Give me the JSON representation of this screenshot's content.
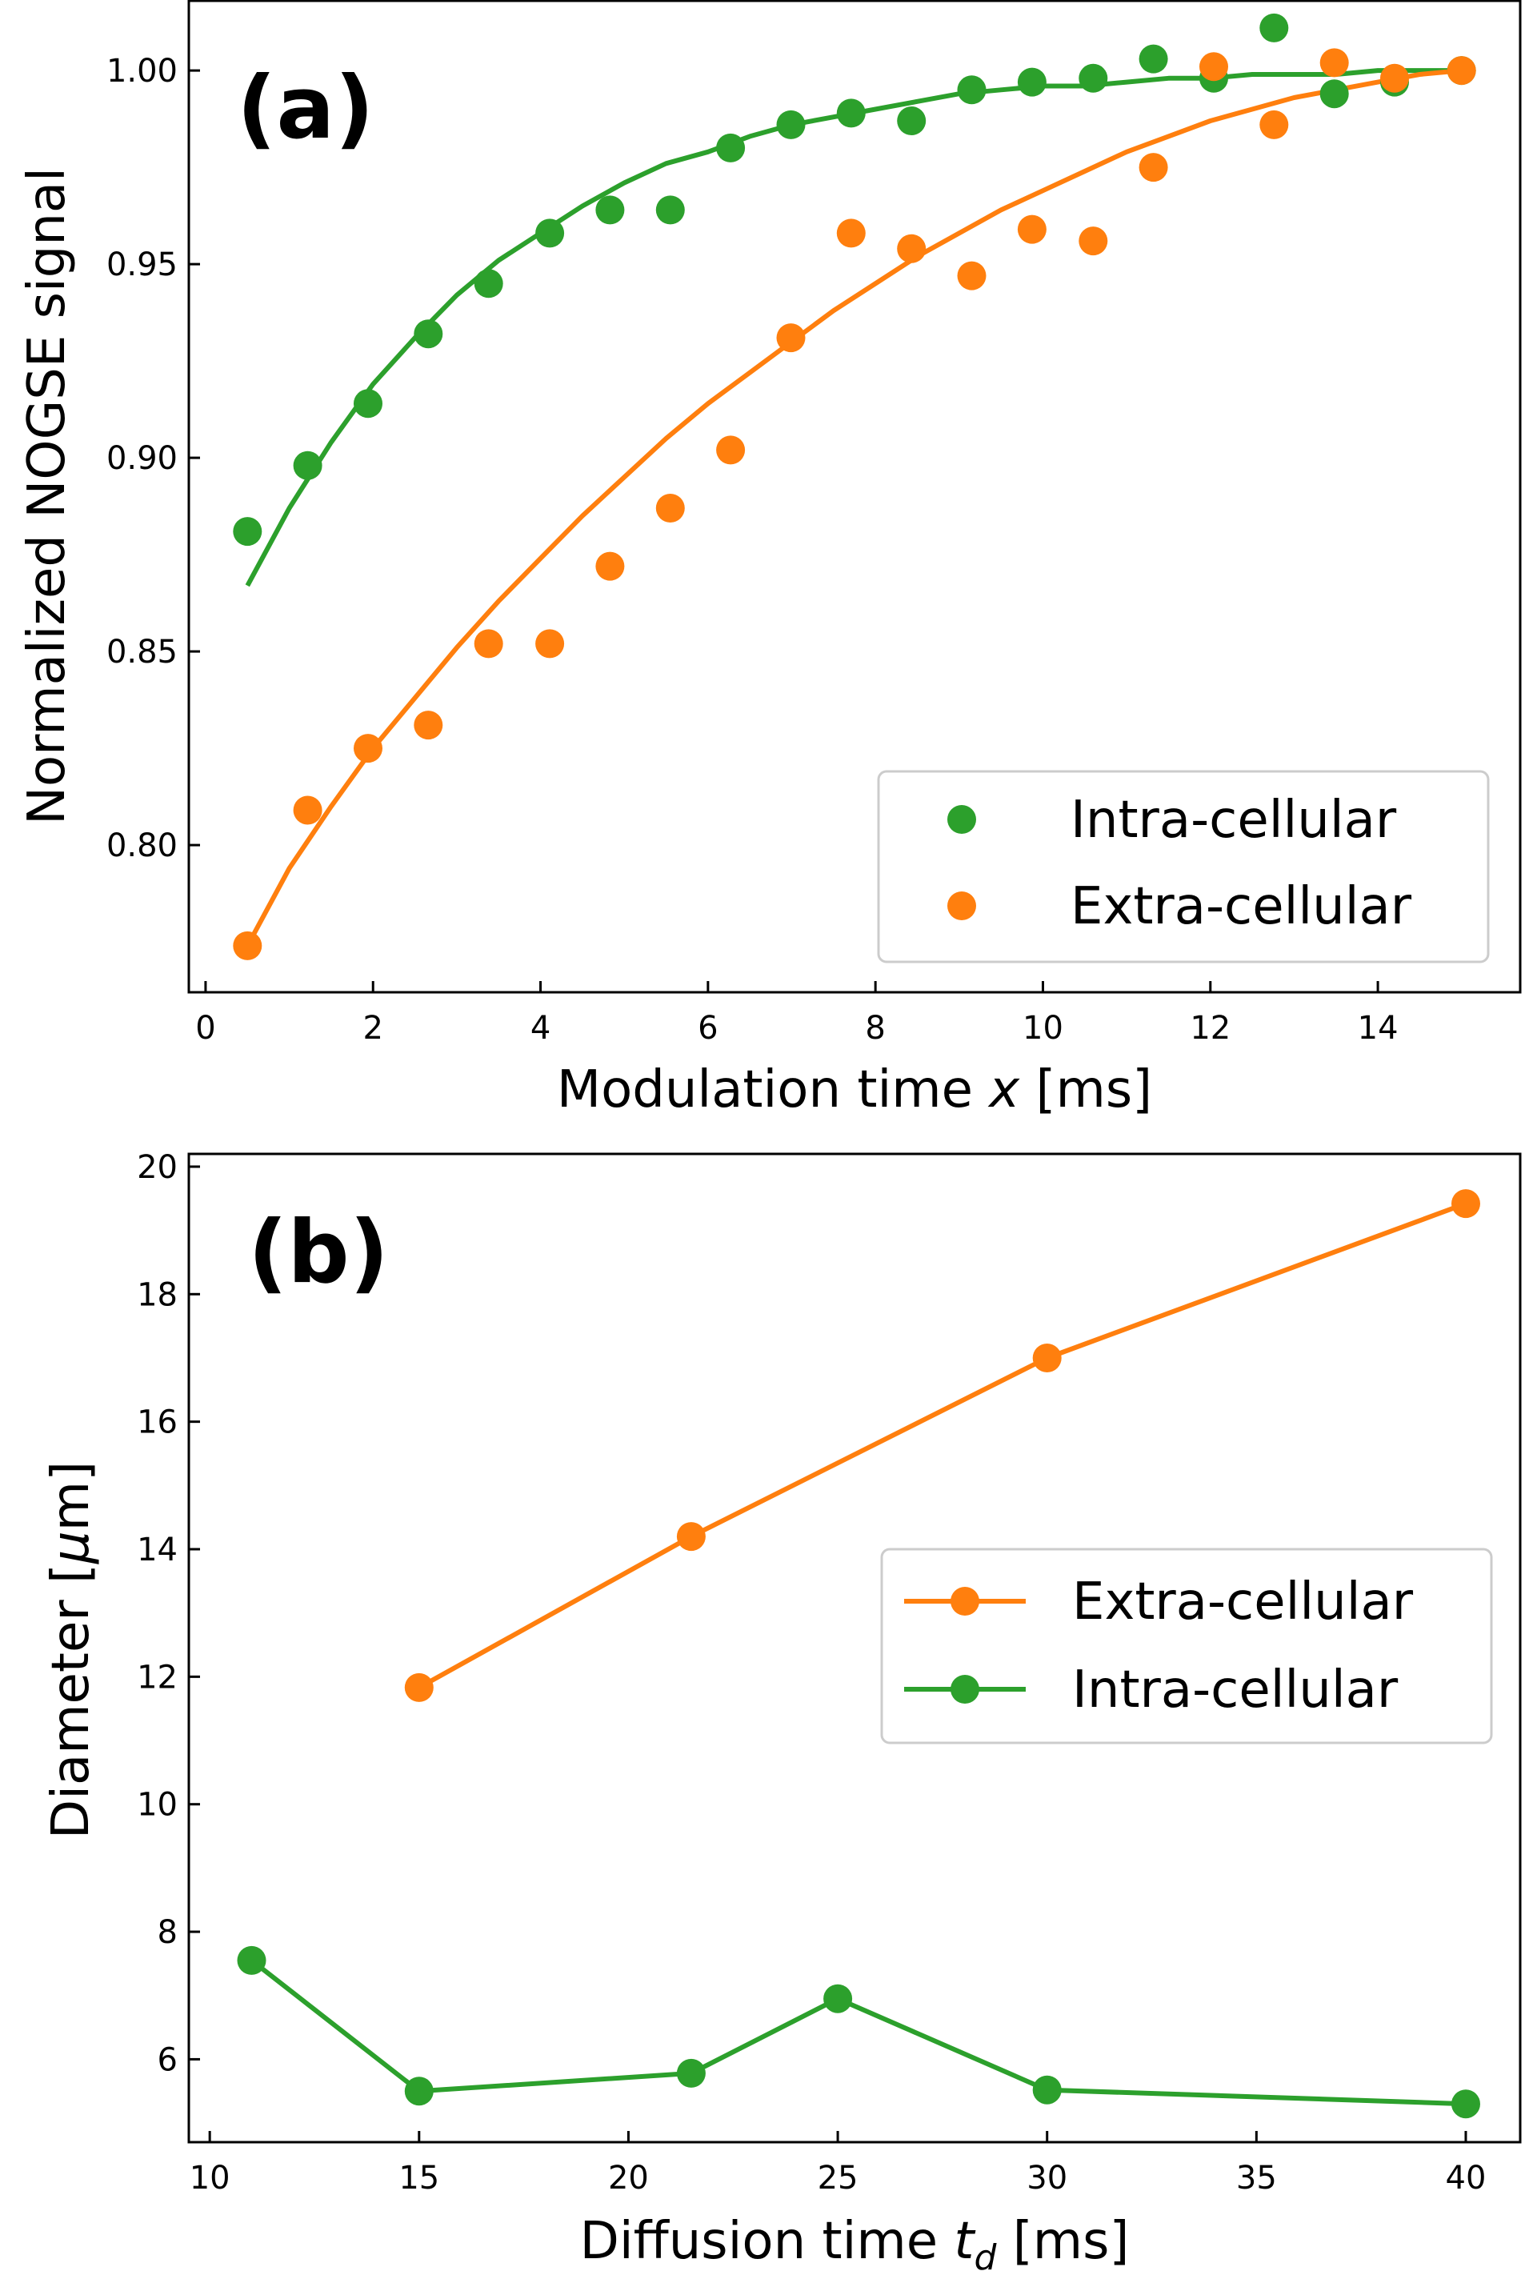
{
  "chart_data": [
    {
      "type": "scatter",
      "panel_label": "(a)",
      "xlabel": "Modulation time x [ms]",
      "xlabel_parts": {
        "prefix": "Modulation time ",
        "var": "x",
        "suffix": " [ms]"
      },
      "ylabel": "Normalized NOGSE signal",
      "xlim": [
        -0.2,
        15.7
      ],
      "ylim": [
        0.762,
        1.018
      ],
      "xticks": [
        0,
        2,
        4,
        6,
        8,
        10,
        12,
        14
      ],
      "yticks": [
        0.8,
        0.85,
        0.9,
        0.95,
        1.0
      ],
      "ytick_labels": [
        "0.80",
        "0.85",
        "0.90",
        "0.95",
        "1.00"
      ],
      "legend": {
        "position": "lower-right",
        "entries": [
          "Intra-cellular",
          "Extra-cellular"
        ]
      },
      "series": [
        {
          "name": "Intra-cellular",
          "color": "#2ca02c",
          "marker": "circle",
          "x": [
            0.5,
            1.22,
            1.94,
            2.66,
            3.38,
            4.11,
            4.83,
            5.55,
            6.27,
            6.99,
            7.71,
            8.43,
            9.15,
            9.87,
            10.6,
            11.32,
            12.04,
            12.76,
            13.48,
            14.2,
            15.0
          ],
          "y": [
            0.881,
            0.898,
            0.914,
            0.932,
            0.945,
            0.958,
            0.964,
            0.964,
            0.98,
            0.986,
            0.989,
            0.987,
            0.995,
            0.997,
            0.998,
            1.003,
            0.998,
            1.011,
            0.994,
            0.997,
            1.0
          ]
        },
        {
          "name": "Extra-cellular",
          "color": "#ff7f0e",
          "marker": "circle",
          "x": [
            0.5,
            1.22,
            1.94,
            2.66,
            3.38,
            4.11,
            4.83,
            5.55,
            6.27,
            6.99,
            7.71,
            8.43,
            9.15,
            9.87,
            10.6,
            11.32,
            12.04,
            12.76,
            13.48,
            14.2,
            15.0
          ],
          "y": [
            0.774,
            0.809,
            0.825,
            0.831,
            0.852,
            0.852,
            0.872,
            0.887,
            0.902,
            0.931,
            0.958,
            0.954,
            0.947,
            0.959,
            0.956,
            0.975,
            1.001,
            0.986,
            1.002,
            0.998,
            1.0
          ]
        }
      ],
      "fits": [
        {
          "color": "#2ca02c",
          "x": [
            0.5,
            1.0,
            1.5,
            2.0,
            2.5,
            3.0,
            3.5,
            4.0,
            4.5,
            5.0,
            5.5,
            6.0,
            6.5,
            7.0,
            7.5,
            8.0,
            8.5,
            9.0,
            9.5,
            10.0,
            10.5,
            11.0,
            11.5,
            12.0,
            12.5,
            13.0,
            13.5,
            14.0,
            14.5,
            15.0
          ],
          "y": [
            0.867,
            0.887,
            0.904,
            0.919,
            0.931,
            0.942,
            0.951,
            0.958,
            0.965,
            0.971,
            0.976,
            0.979,
            0.983,
            0.986,
            0.988,
            0.99,
            0.992,
            0.994,
            0.995,
            0.996,
            0.996,
            0.997,
            0.998,
            0.998,
            0.999,
            0.999,
            0.999,
            1.0,
            1.0,
            1.0
          ]
        },
        {
          "color": "#ff7f0e",
          "x": [
            0.5,
            1.0,
            1.5,
            2.0,
            2.5,
            3.0,
            3.5,
            4.0,
            4.5,
            5.0,
            5.5,
            6.0,
            6.5,
            7.0,
            7.5,
            8.0,
            8.5,
            9.0,
            9.5,
            10.0,
            10.5,
            11.0,
            11.5,
            12.0,
            12.5,
            13.0,
            13.5,
            14.0,
            14.5,
            15.0
          ],
          "y": [
            0.774,
            0.794,
            0.81,
            0.825,
            0.838,
            0.851,
            0.863,
            0.874,
            0.885,
            0.895,
            0.905,
            0.914,
            0.922,
            0.93,
            0.938,
            0.945,
            0.952,
            0.958,
            0.964,
            0.969,
            0.974,
            0.979,
            0.983,
            0.987,
            0.99,
            0.993,
            0.995,
            0.997,
            0.999,
            1.0
          ]
        }
      ]
    },
    {
      "type": "line",
      "panel_label": "(b)",
      "xlabel": "Diffusion time t_d [ms]",
      "xlabel_parts": {
        "prefix": "Diffusion time ",
        "var": "t",
        "sub": "d",
        "suffix": " [ms]"
      },
      "ylabel": "Diameter [μm]",
      "ylabel_parts": {
        "prefix": "Diameter [",
        "var": "μ",
        "suffix": "m]"
      },
      "xlim": [
        9.5,
        41.3
      ],
      "ylim": [
        4.7,
        20.2
      ],
      "xticks": [
        10,
        15,
        20,
        25,
        30,
        35,
        40
      ],
      "yticks": [
        6,
        8,
        10,
        12,
        14,
        16,
        18,
        20
      ],
      "legend": {
        "position": "center-right",
        "entries": [
          "Extra-cellular",
          "Intra-cellular"
        ]
      },
      "series": [
        {
          "name": "Extra-cellular",
          "color": "#ff7f0e",
          "marker": "circle",
          "x": [
            15,
            21.5,
            30,
            40
          ],
          "y": [
            11.83,
            14.2,
            17.0,
            19.42
          ]
        },
        {
          "name": "Intra-cellular",
          "color": "#2ca02c",
          "marker": "circle",
          "x": [
            11,
            15,
            21.5,
            25,
            30,
            40
          ],
          "y": [
            7.55,
            5.5,
            5.78,
            6.95,
            5.52,
            5.3
          ]
        }
      ]
    }
  ]
}
